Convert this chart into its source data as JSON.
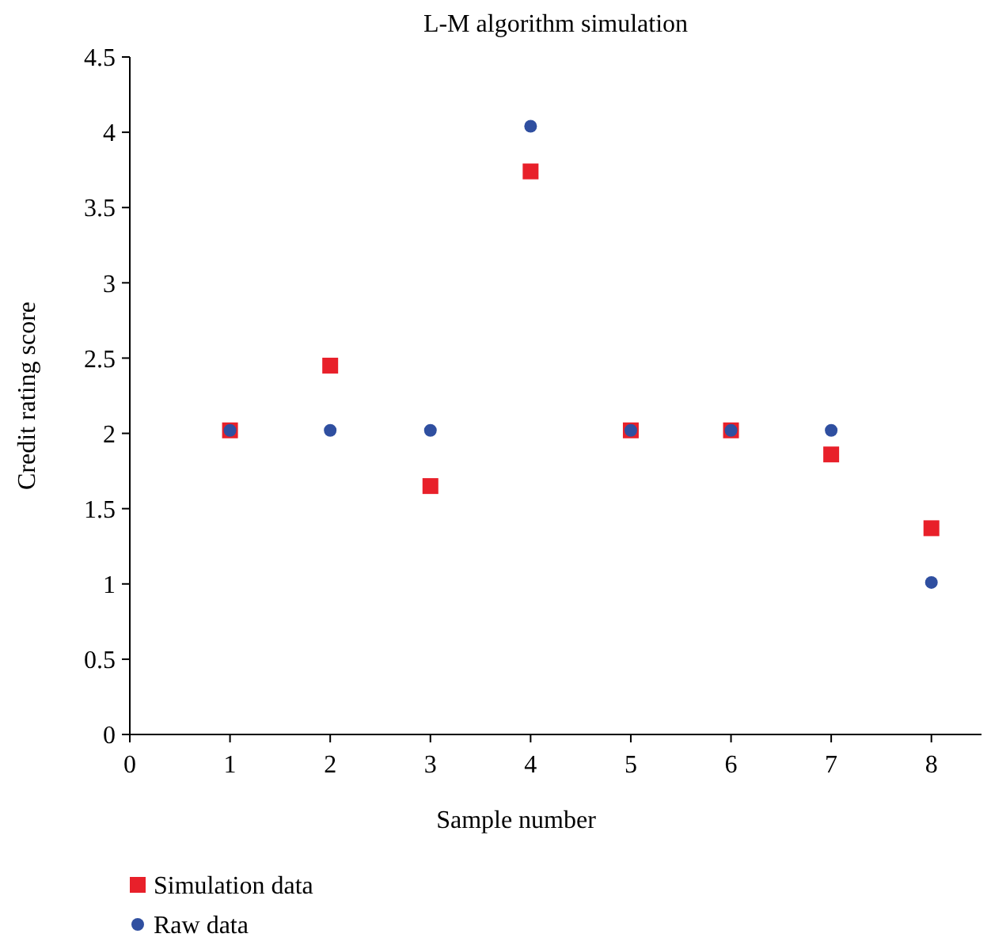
{
  "chart_data": {
    "type": "scatter",
    "title": "L-M algorithm simulation",
    "xlabel": "Sample number",
    "ylabel": "Credit rating score",
    "x": [
      1,
      2,
      3,
      4,
      5,
      6,
      7,
      8
    ],
    "series": [
      {
        "name": "Simulation data",
        "color": "#e8202a",
        "marker": "square",
        "values": [
          2.02,
          2.45,
          1.65,
          3.74,
          2.02,
          2.02,
          1.86,
          1.37
        ]
      },
      {
        "name": "Raw data",
        "color": "#2f4fa0",
        "marker": "circle",
        "values": [
          2.02,
          2.02,
          2.02,
          4.04,
          2.02,
          2.02,
          2.02,
          1.01
        ]
      }
    ],
    "xlim": [
      0,
      8.5
    ],
    "xticks": [
      0,
      1,
      2,
      3,
      4,
      5,
      6,
      7,
      8
    ],
    "ylim": [
      0,
      4.5
    ],
    "yticks": [
      0,
      0.5,
      1,
      1.5,
      2,
      2.5,
      3,
      3.5,
      4,
      4.5
    ],
    "grid": false,
    "legend": "bottom left"
  }
}
